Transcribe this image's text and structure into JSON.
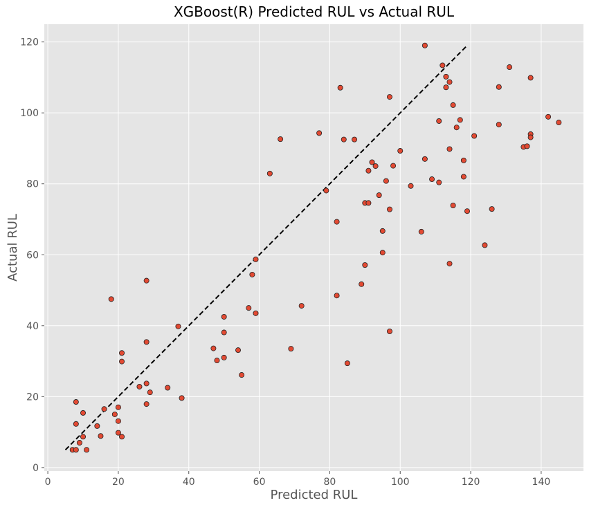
{
  "colors": {
    "plot_background": "#e5e5e5",
    "grid": "#ffffff",
    "point_fill": "#e24a33",
    "point_edge": "#222222",
    "reference_line": "#000000",
    "tick_mark": "#555555"
  },
  "chart_data": {
    "type": "scatter",
    "title": "XGBoost(R) Predicted RUL vs Actual RUL",
    "xlabel": "Predicted RUL",
    "ylabel": "Actual RUL",
    "xlim": [
      -1,
      152
    ],
    "ylim": [
      -1,
      125
    ],
    "xticks": [
      0,
      20,
      40,
      60,
      80,
      100,
      120,
      140
    ],
    "yticks": [
      0,
      20,
      40,
      60,
      80,
      100,
      120
    ],
    "grid": true,
    "reference_line": {
      "style": "dashed",
      "points": [
        [
          5,
          5
        ],
        [
          119,
          119
        ]
      ]
    },
    "series": [
      {
        "points": [
          [
            7,
            5
          ],
          [
            8,
            5
          ],
          [
            9,
            7
          ],
          [
            10,
            8.7
          ],
          [
            11,
            5
          ],
          [
            8,
            12.3
          ],
          [
            8,
            18.5
          ],
          [
            10,
            15.4
          ],
          [
            14,
            11.7
          ],
          [
            15,
            8.9
          ],
          [
            16,
            16.5
          ],
          [
            19,
            15
          ],
          [
            20,
            17
          ],
          [
            20,
            13.1
          ],
          [
            20,
            9.8
          ],
          [
            21,
            8.7
          ],
          [
            21,
            29.9
          ],
          [
            21,
            32.3
          ],
          [
            18,
            47.5
          ],
          [
            26,
            22.8
          ],
          [
            28,
            17.9
          ],
          [
            28,
            23.7
          ],
          [
            28,
            35.4
          ],
          [
            28,
            52.7
          ],
          [
            29,
            21.2
          ],
          [
            34,
            22.5
          ],
          [
            37,
            39.8
          ],
          [
            38,
            19.6
          ],
          [
            47,
            33.6
          ],
          [
            48,
            30.2
          ],
          [
            50,
            31
          ],
          [
            50,
            38.1
          ],
          [
            50,
            42.5
          ],
          [
            54,
            33.1
          ],
          [
            55,
            26.1
          ],
          [
            57,
            45
          ],
          [
            58,
            54.4
          ],
          [
            59,
            43.5
          ],
          [
            59,
            58.7
          ],
          [
            63,
            82.9
          ],
          [
            66,
            92.6
          ],
          [
            69,
            33.5
          ],
          [
            72,
            45.6
          ],
          [
            77,
            94.3
          ],
          [
            79,
            78.1
          ],
          [
            82,
            48.5
          ],
          [
            82,
            69.3
          ],
          [
            83,
            107.1
          ],
          [
            84,
            92.5
          ],
          [
            85,
            29.4
          ],
          [
            87,
            92.5
          ],
          [
            89,
            51.7
          ],
          [
            90,
            57.1
          ],
          [
            90,
            74.6
          ],
          [
            91,
            74.6
          ],
          [
            91,
            83.7
          ],
          [
            92,
            86.1
          ],
          [
            93,
            85
          ],
          [
            94,
            76.8
          ],
          [
            95,
            60.6
          ],
          [
            95,
            66.7
          ],
          [
            96,
            80.8
          ],
          [
            97,
            38.4
          ],
          [
            97,
            72.8
          ],
          [
            97,
            104.5
          ],
          [
            98,
            85.1
          ],
          [
            100,
            89.3
          ],
          [
            103,
            79.4
          ],
          [
            106,
            66.5
          ],
          [
            107,
            87
          ],
          [
            107,
            119
          ],
          [
            109,
            81.3
          ],
          [
            111,
            80.4
          ],
          [
            111,
            97.7
          ],
          [
            112,
            113.4
          ],
          [
            113,
            107.2
          ],
          [
            113,
            110.2
          ],
          [
            114,
            108.7
          ],
          [
            114,
            89.8
          ],
          [
            114,
            57.5
          ],
          [
            115,
            102.2
          ],
          [
            115,
            73.9
          ],
          [
            116,
            95.9
          ],
          [
            117,
            98
          ],
          [
            118,
            86.6
          ],
          [
            118,
            82
          ],
          [
            119,
            72.3
          ],
          [
            121,
            93.5
          ],
          [
            124,
            62.7
          ],
          [
            126,
            72.9
          ],
          [
            128,
            96.7
          ],
          [
            128,
            107.3
          ],
          [
            131,
            112.9
          ],
          [
            135,
            90.4
          ],
          [
            136,
            90.6
          ],
          [
            137,
            94
          ],
          [
            137,
            93.1
          ],
          [
            137,
            109.9
          ],
          [
            142,
            98.9
          ],
          [
            145,
            97.3
          ]
        ]
      }
    ]
  }
}
